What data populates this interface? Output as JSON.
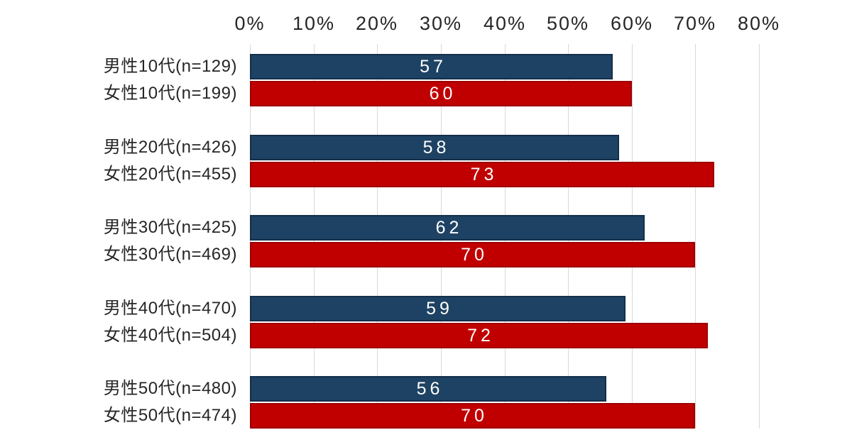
{
  "background_color": "#FFFFFF",
  "chart_data": {
    "type": "bar",
    "orientation": "horizontal",
    "title": "",
    "xlabel": "",
    "ylabel": "",
    "x_axis": {
      "position": "top",
      "min": 0,
      "max": 80,
      "unit": "%",
      "tick_step": 10,
      "ticks": [
        "0%",
        "10%",
        "20%",
        "30%",
        "40%",
        "50%",
        "60%",
        "70%",
        "80%"
      ],
      "grid": true
    },
    "legend": "none",
    "series": [
      {
        "name": "male",
        "color": "#1E4263",
        "border_color": "#142F4B"
      },
      {
        "name": "female",
        "color": "#C00000",
        "border_color": "#9E0000"
      }
    ],
    "rows": [
      {
        "label": "男性10代(n=129)",
        "value": 57,
        "series": "male",
        "group": 0
      },
      {
        "label": "女性10代(n=199)",
        "value": 60,
        "series": "female",
        "group": 0
      },
      {
        "label": "男性20代(n=426)",
        "value": 58,
        "series": "male",
        "group": 1
      },
      {
        "label": "女性20代(n=455)",
        "value": 73,
        "series": "female",
        "group": 1
      },
      {
        "label": "男性30代(n=425)",
        "value": 62,
        "series": "male",
        "group": 2
      },
      {
        "label": "女性30代(n=469)",
        "value": 70,
        "series": "female",
        "group": 2
      },
      {
        "label": "男性40代(n=470)",
        "value": 59,
        "series": "male",
        "group": 3
      },
      {
        "label": "女性40代(n=504)",
        "value": 72,
        "series": "female",
        "group": 3
      },
      {
        "label": "男性50代(n=480)",
        "value": 56,
        "series": "male",
        "group": 4
      },
      {
        "label": "女性50代(n=474)",
        "value": 70,
        "series": "female",
        "group": 4
      }
    ],
    "colors": {
      "gridline": "#D9D9D9",
      "axis_text": "#262626",
      "category_text": "#262626",
      "value_text": "#FFFFFF"
    }
  }
}
